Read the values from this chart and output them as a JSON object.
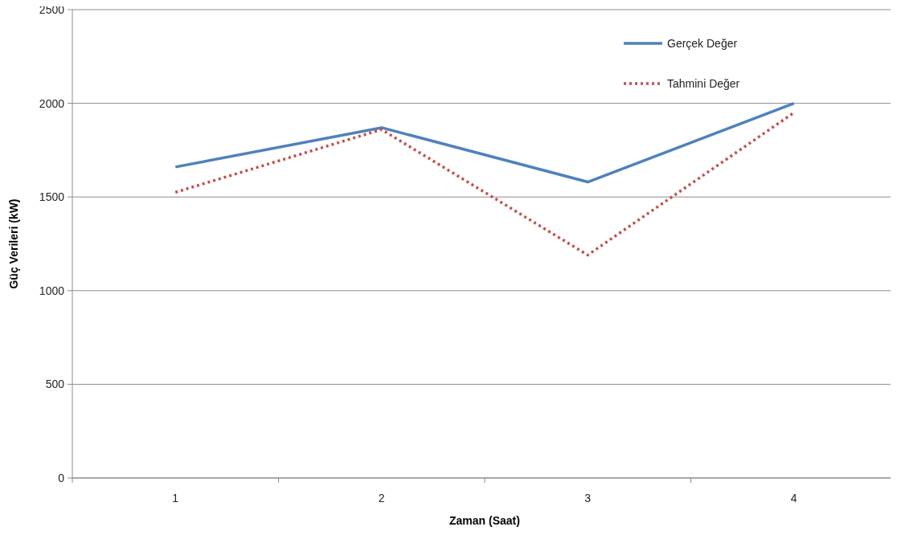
{
  "chart_data": {
    "type": "line",
    "xlabel": "Zaman (Saat)",
    "ylabel": "Güç Verileri (kW)",
    "categories": [
      "1",
      "2",
      "3",
      "4"
    ],
    "series": [
      {
        "name": "Gerçek Değer",
        "color": "#4f81bd",
        "values": [
          1660,
          1870,
          1580,
          2000
        ],
        "line_style": "solid"
      },
      {
        "name": "Tahmini Değer",
        "color": "#c0504d",
        "values": [
          1525,
          1860,
          1190,
          1950
        ],
        "line_style": "dotted"
      }
    ],
    "ylim": [
      0,
      2500
    ],
    "yticks": [
      0,
      500,
      1000,
      1500,
      2000,
      2500
    ],
    "grid": "y",
    "legend": "top right",
    "marker": "none"
  }
}
